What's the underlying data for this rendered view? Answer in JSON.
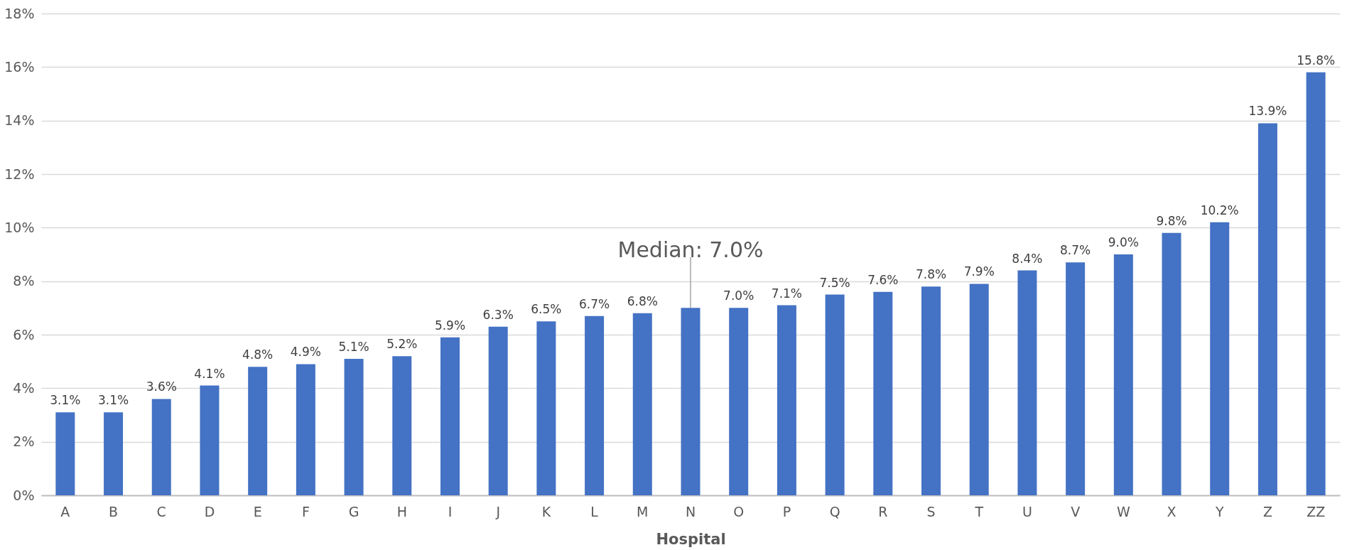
{
  "chart_data": {
    "type": "bar",
    "xlabel": "Hospital",
    "categories": [
      "A",
      "B",
      "C",
      "D",
      "E",
      "F",
      "G",
      "H",
      "I",
      "J",
      "K",
      "L",
      "M",
      "N",
      "O",
      "P",
      "Q",
      "R",
      "S",
      "T",
      "U",
      "V",
      "W",
      "X",
      "Y",
      "Z",
      "ZZ"
    ],
    "series": [
      {
        "color": "#4472c4",
        "values": [
          3.1,
          3.1,
          3.6,
          4.1,
          4.8,
          4.9,
          5.1,
          5.2,
          5.9,
          6.3,
          6.5,
          6.7,
          6.8,
          7.0,
          7.0,
          7.1,
          7.5,
          7.6,
          7.8,
          7.9,
          8.4,
          8.7,
          9.0,
          9.8,
          10.2,
          13.9,
          15.8
        ],
        "value_labels": [
          "3.1%",
          "3.1%",
          "3.6%",
          "4.1%",
          "4.8%",
          "4.9%",
          "5.1%",
          "5.2%",
          "5.9%",
          "6.3%",
          "6.5%",
          "6.7%",
          "6.8%",
          null,
          "7.0%",
          "7.1%",
          "7.5%",
          "7.6%",
          "7.8%",
          "7.9%",
          "8.4%",
          "8.7%",
          "9.0%",
          "9.8%",
          "10.2%",
          "13.9%",
          "15.8%"
        ]
      }
    ],
    "annotations": [
      {
        "text": "Median: 7.0%",
        "x": "N",
        "y": 7.0
      }
    ],
    "ylim": [
      0,
      18
    ],
    "yticks": [
      {
        "value": 0,
        "label": "0%"
      },
      {
        "value": 2,
        "label": "2%"
      },
      {
        "value": 4,
        "label": "4%"
      },
      {
        "value": 6,
        "label": "6%"
      },
      {
        "value": 8,
        "label": "8%"
      },
      {
        "value": 10,
        "label": "10%"
      },
      {
        "value": 12,
        "label": "12%"
      },
      {
        "value": 14,
        "label": "14%"
      },
      {
        "value": 16,
        "label": "16%"
      },
      {
        "value": 18,
        "label": "18%"
      }
    ],
    "grid": "y"
  }
}
